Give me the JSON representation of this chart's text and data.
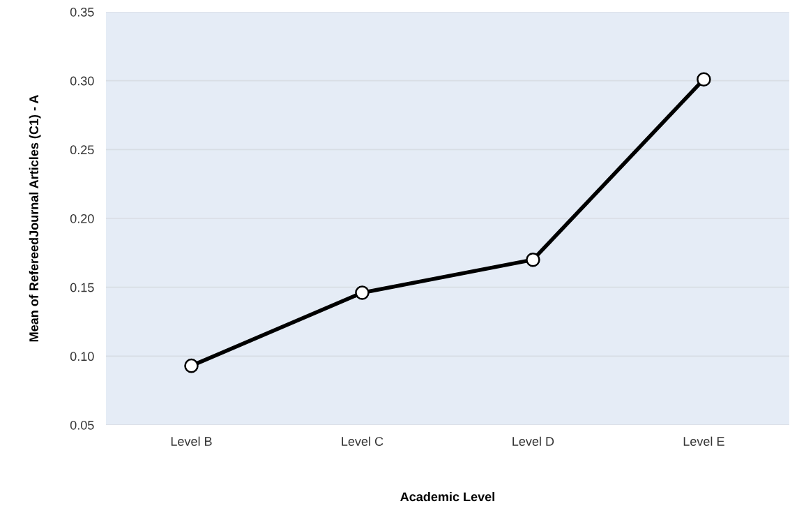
{
  "chart_data": {
    "type": "line",
    "xlabel": "Academic Level",
    "ylabel": "Mean of RefereedJournal Articles (C1) - A",
    "categories": [
      "Level B",
      "Level C",
      "Level D",
      "Level E"
    ],
    "series": [
      {
        "color": "#000000",
        "values": [
          0.093,
          0.146,
          0.17,
          0.301
        ]
      }
    ],
    "ylim": [
      0.05,
      0.35
    ],
    "yticks": [
      {
        "value": 0.05,
        "label": "0.05"
      },
      {
        "value": 0.1,
        "label": "0.10"
      },
      {
        "value": 0.15,
        "label": "0.15"
      },
      {
        "value": 0.2,
        "label": "0.20"
      },
      {
        "value": 0.25,
        "label": "0.25"
      },
      {
        "value": 0.3,
        "label": "0.30"
      },
      {
        "value": 0.35,
        "label": "0.35"
      }
    ],
    "grid": "y",
    "marker": "circle",
    "line_style": "solid",
    "legend": false
  }
}
